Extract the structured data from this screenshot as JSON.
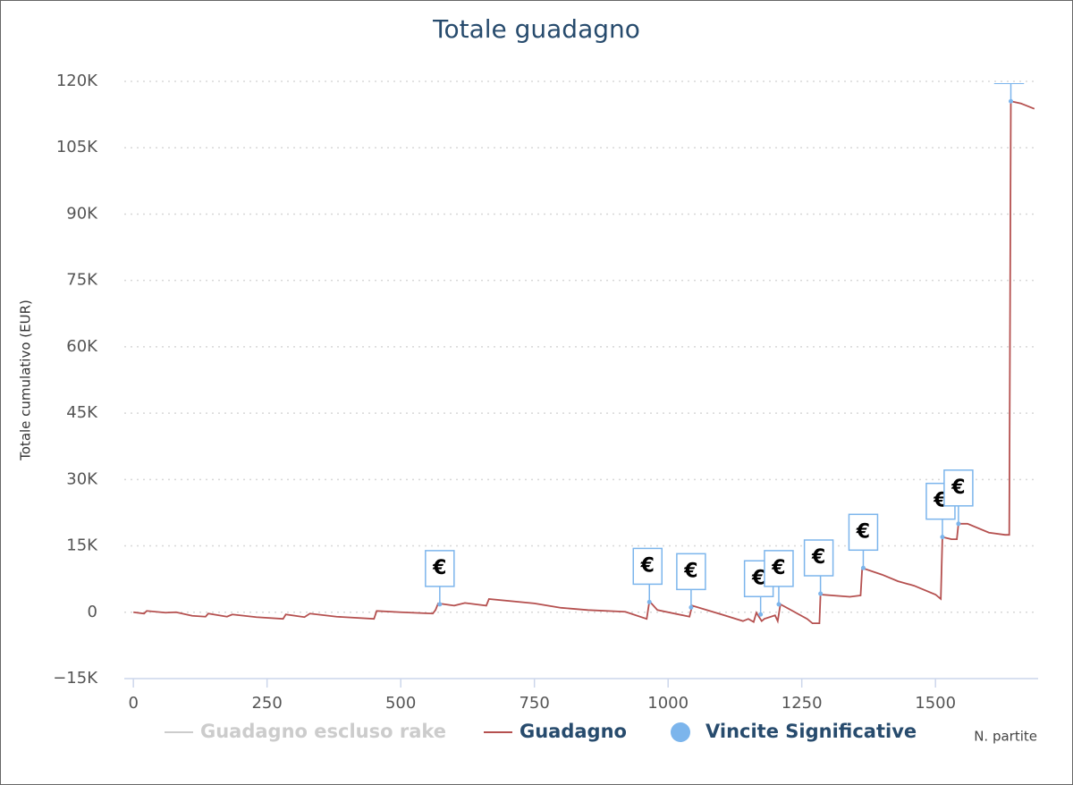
{
  "chart_data": {
    "type": "line",
    "title": "Totale guadagno",
    "y_label": "Totale cumulativo (EUR)",
    "x_label": "N. partite",
    "xlim": [
      -17,
      1692
    ],
    "xticks": [
      0,
      250,
      500,
      750,
      1000,
      1250,
      1500
    ],
    "ylim": [
      -15000,
      120000
    ],
    "yticks": [
      {
        "value": -15000,
        "label": "−15K"
      },
      0,
      {
        "value": 15000,
        "label": "15K"
      },
      {
        "value": 30000,
        "label": "30K"
      },
      {
        "value": 45000,
        "label": "45K"
      },
      {
        "value": 60000,
        "label": "60K"
      },
      {
        "value": 75000,
        "label": "75K"
      },
      {
        "value": 90000,
        "label": "90K"
      },
      {
        "value": 105000,
        "label": "105K"
      },
      {
        "value": 120000,
        "label": "120K"
      }
    ],
    "grid": true,
    "series": [
      {
        "name": "Guadagno escluso rake",
        "color": "#cccccc",
        "visible": false
      },
      {
        "name": "Guadagno",
        "color": "#b5504f",
        "visible": true,
        "x": [
          0,
          20,
          25,
          60,
          80,
          110,
          135,
          140,
          175,
          185,
          230,
          280,
          285,
          320,
          330,
          380,
          450,
          455,
          500,
          560,
          565,
          570,
          600,
          620,
          660,
          665,
          750,
          800,
          850,
          920,
          960,
          965,
          980,
          1040,
          1045,
          1100,
          1140,
          1150,
          1160,
          1165,
          1175,
          1180,
          1200,
          1205,
          1210,
          1260,
          1270,
          1283,
          1285,
          1340,
          1360,
          1363,
          1400,
          1430,
          1460,
          1500,
          1510,
          1513,
          1530,
          1540,
          1543,
          1560,
          1600,
          1630,
          1638,
          1641,
          1660,
          1685
        ],
        "values": [
          0,
          -300,
          300,
          -100,
          0,
          -800,
          -1000,
          -300,
          -1000,
          -500,
          -1100,
          -1500,
          -500,
          -1100,
          -300,
          -1000,
          -1500,
          300,
          0,
          -300,
          500,
          2000,
          1500,
          2100,
          1500,
          3000,
          2000,
          1000,
          500,
          100,
          -1500,
          2500,
          500,
          -1000,
          1500,
          -500,
          -2000,
          -1500,
          -2200,
          -100,
          -2000,
          -1500,
          -700,
          -2000,
          1800,
          -1500,
          -2500,
          -2500,
          4000,
          3500,
          3800,
          10000,
          8500,
          7000,
          6000,
          4000,
          3000,
          17000,
          16500,
          16500,
          20000,
          20000,
          18000,
          17500,
          17500,
          115500,
          115000,
          113800
        ]
      },
      {
        "name": "Vincite Significative",
        "color": "#7cb5ec",
        "visible": true,
        "marker": "flag",
        "x": [
          573,
          965,
          1043,
          1173,
          1207,
          1285,
          1365,
          1513,
          1543,
          1641
        ],
        "values": [
          1800,
          2300,
          1100,
          -500,
          1800,
          4200,
          10000,
          17000,
          20000,
          115500
        ],
        "labels": [
          "€",
          "€",
          "€",
          "€",
          "€",
          "€",
          "€",
          "€",
          "€",
          "€"
        ]
      }
    ]
  }
}
